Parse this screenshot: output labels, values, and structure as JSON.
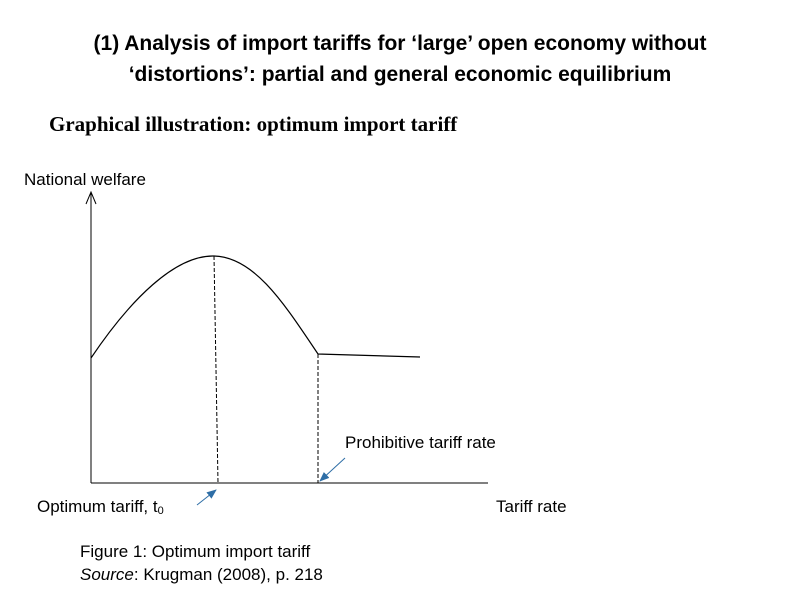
{
  "slide": {
    "title_line1": "(1) Analysis of import tariffs for ‘large’ open economy without",
    "title_line2": "‘distortions’: partial and general economic equilibrium",
    "subtitle": "Graphical illustration: optimum import tariff"
  },
  "diagram": {
    "y_axis_label": "National welfare",
    "x_axis_label": "Tariff rate",
    "optimum_label": "Optimum tariff, t",
    "optimum_subscript": "0",
    "prohibitive_label": "Prohibitive tariff rate"
  },
  "caption": {
    "line1": "Figure 1: Optimum import tariff",
    "source_label": "Source",
    "source_rest": ": Krugman (2008), p. 218"
  }
}
